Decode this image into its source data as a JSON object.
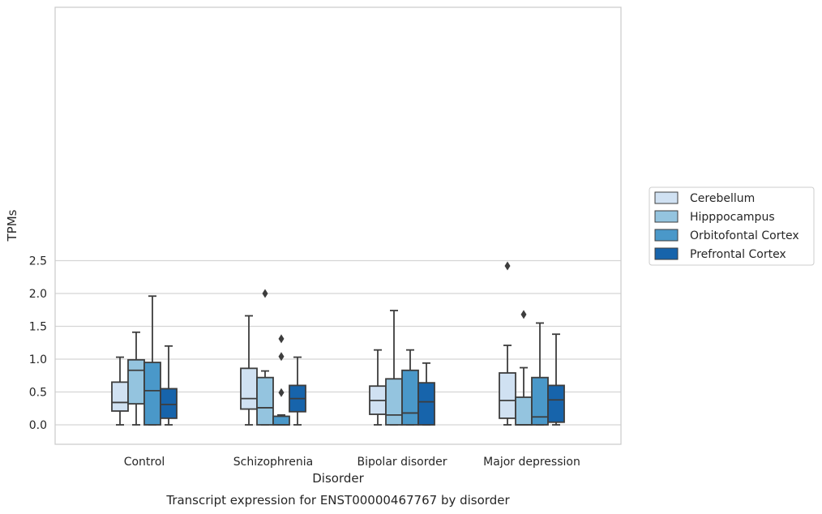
{
  "chart_data": {
    "type": "boxplot",
    "caption": "Transcript expression for ENST00000467767 by disorder",
    "xlabel": "Disorder",
    "ylabel": "TPMs",
    "ylim": [
      -0.12,
      2.55
    ],
    "yticks": [
      "0.0",
      "0.5",
      "1.0",
      "1.5",
      "2.0",
      "2.5"
    ],
    "ytick_values": [
      0,
      0.5,
      1.0,
      1.5,
      2.0,
      2.5
    ],
    "grid": true,
    "legend_position": "right",
    "categories": [
      "Control",
      "Schizophrenia",
      "Bipolar disorder",
      "Major depression"
    ],
    "series": [
      {
        "name": "Cerebellum",
        "color": "#d0e1f2",
        "boxes": [
          {
            "whislo": 0.0,
            "q1": 0.21,
            "med": 0.34,
            "q3": 0.65,
            "whishi": 1.03,
            "fliers": []
          },
          {
            "whislo": 0.0,
            "q1": 0.24,
            "med": 0.4,
            "q3": 0.86,
            "whishi": 1.66,
            "fliers": []
          },
          {
            "whislo": 0.0,
            "q1": 0.16,
            "med": 0.37,
            "q3": 0.59,
            "whishi": 1.14,
            "fliers": []
          },
          {
            "whislo": 0.0,
            "q1": 0.1,
            "med": 0.37,
            "q3": 0.79,
            "whishi": 1.21,
            "fliers": [
              2.42
            ]
          }
        ]
      },
      {
        "name": "Hipppocampus",
        "color": "#94c4df",
        "boxes": [
          {
            "whislo": 0.0,
            "q1": 0.32,
            "med": 0.83,
            "q3": 0.99,
            "whishi": 1.41,
            "fliers": []
          },
          {
            "whislo": 0.0,
            "q1": 0.0,
            "med": 0.26,
            "q3": 0.72,
            "whishi": 0.82,
            "fliers": [
              2.0
            ]
          },
          {
            "whislo": 0.0,
            "q1": 0.0,
            "med": 0.15,
            "q3": 0.7,
            "whishi": 1.74,
            "fliers": []
          },
          {
            "whislo": 0.0,
            "q1": 0.0,
            "med": 0.0,
            "q3": 0.42,
            "whishi": 0.87,
            "fliers": [
              1.68
            ]
          }
        ]
      },
      {
        "name": "Orbitofontal Cortex",
        "color": "#4a98c9",
        "boxes": [
          {
            "whislo": 0.0,
            "q1": 0.0,
            "med": 0.52,
            "q3": 0.95,
            "whishi": 1.96,
            "fliers": []
          },
          {
            "whislo": 0.0,
            "q1": 0.0,
            "med": 0.0,
            "q3": 0.13,
            "whishi": 0.15,
            "fliers": [
              1.31,
              1.04,
              0.49
            ]
          },
          {
            "whislo": 0.0,
            "q1": 0.0,
            "med": 0.18,
            "q3": 0.83,
            "whishi": 1.14,
            "fliers": []
          },
          {
            "whislo": 0.0,
            "q1": 0.0,
            "med": 0.12,
            "q3": 0.72,
            "whishi": 1.55,
            "fliers": []
          }
        ]
      },
      {
        "name": "Prefrontal Cortex",
        "color": "#1764ab",
        "boxes": [
          {
            "whislo": 0.0,
            "q1": 0.1,
            "med": 0.31,
            "q3": 0.55,
            "whishi": 1.2,
            "fliers": []
          },
          {
            "whislo": 0.0,
            "q1": 0.2,
            "med": 0.4,
            "q3": 0.6,
            "whishi": 1.03,
            "fliers": []
          },
          {
            "whislo": 0.0,
            "q1": 0.0,
            "med": 0.35,
            "q3": 0.64,
            "whishi": 0.94,
            "fliers": []
          },
          {
            "whislo": 0.0,
            "q1": 0.04,
            "med": 0.38,
            "q3": 0.6,
            "whishi": 1.38,
            "fliers": []
          }
        ]
      }
    ]
  }
}
